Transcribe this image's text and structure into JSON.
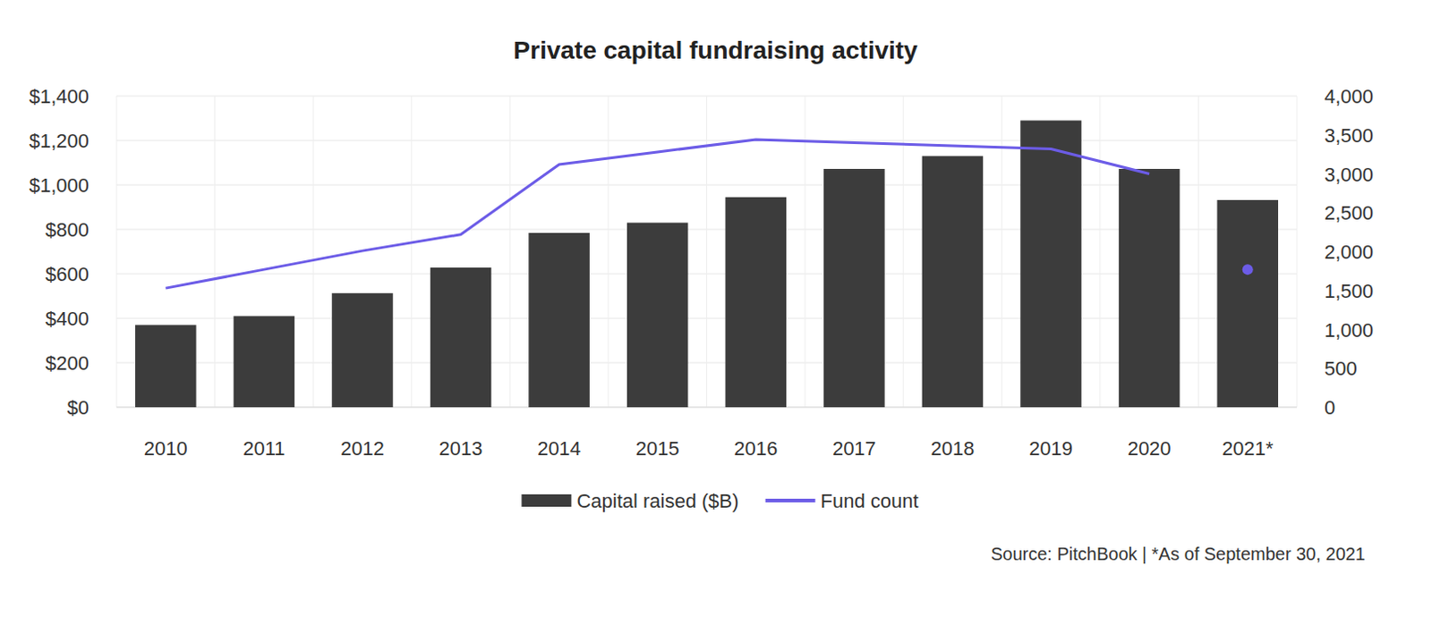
{
  "chart_data": {
    "type": "bar",
    "title": "Private capital fundraising activity",
    "categories": [
      "2010",
      "2011",
      "2012",
      "2013",
      "2014",
      "2015",
      "2016",
      "2017",
      "2018",
      "2019",
      "2020",
      "2021*"
    ],
    "series": [
      {
        "name": "Capital raised ($B)",
        "type": "bar",
        "color": "#3c3c3c",
        "values": [
          370,
          410,
          513,
          628,
          784,
          830,
          945,
          1072,
          1130,
          1290,
          1072,
          932
        ]
      },
      {
        "name": "Fund count",
        "type": "line",
        "axis": "y2",
        "color": "#6c5ce7",
        "marker": "circle",
        "values": [
          1530,
          1770,
          2010,
          2220,
          3120,
          3280,
          3440,
          3400,
          3360,
          3320,
          3000,
          1770
        ]
      }
    ],
    "ylim": [
      0,
      1400
    ],
    "yticks": [
      {
        "value": 0,
        "label": "$0"
      },
      {
        "value": 200,
        "label": "$200"
      },
      {
        "value": 400,
        "label": "$400"
      },
      {
        "value": 600,
        "label": "$600"
      },
      {
        "value": 800,
        "label": "$800"
      },
      {
        "value": 1000,
        "label": "$1,000"
      },
      {
        "value": 1200,
        "label": "$1,200"
      },
      {
        "value": 1400,
        "label": "$1,400"
      }
    ],
    "y2lim": [
      0,
      4000
    ],
    "y2ticks": [
      0,
      500,
      {
        "value": 1000,
        "label": "1,000"
      },
      {
        "value": 1500,
        "label": "1,500"
      },
      {
        "value": 2000,
        "label": "2,000"
      },
      {
        "value": 2500,
        "label": "2,500"
      },
      {
        "value": 3000,
        "label": "3,000"
      },
      {
        "value": 3500,
        "label": "3,500"
      },
      {
        "value": 4000,
        "label": "4,000"
      }
    ],
    "grid": true,
    "legend": "bottom",
    "annotations": [
      "Source: PitchBook | *As of September 30, 2021"
    ]
  }
}
